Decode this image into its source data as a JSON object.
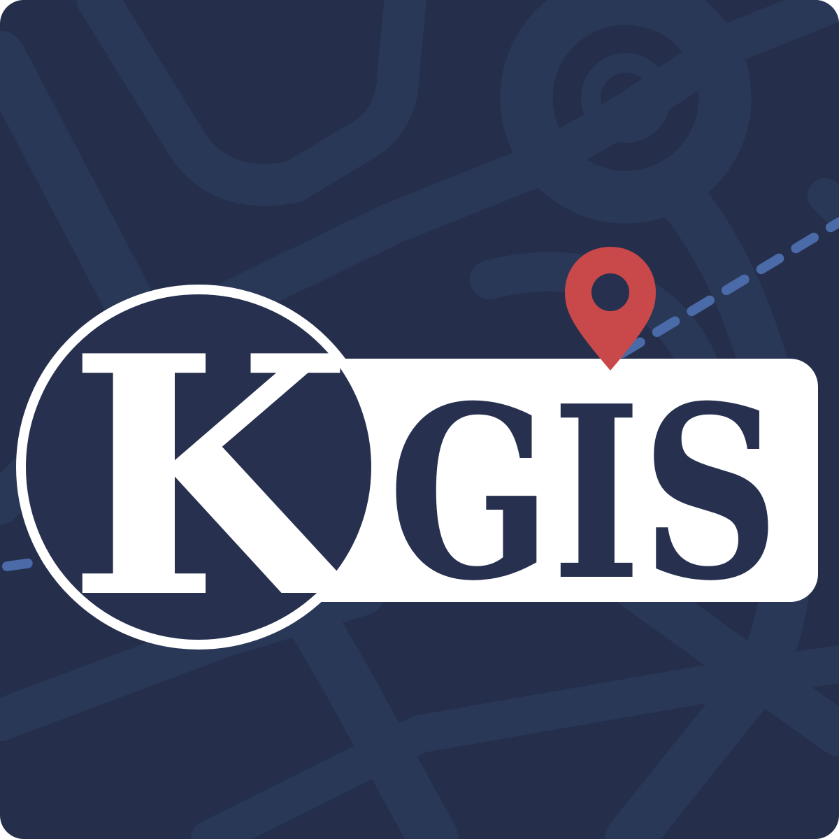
{
  "logo": {
    "k_letter": "K",
    "wordmark": "GIS",
    "icons": [
      "map-background",
      "location-pin-icon"
    ],
    "colors": {
      "background": "#252f4c",
      "road": "#2a3858",
      "dashed_route": "#4a6aa8",
      "badge": "#ffffff",
      "text": "#27304f",
      "pin": "#c9484a"
    }
  }
}
